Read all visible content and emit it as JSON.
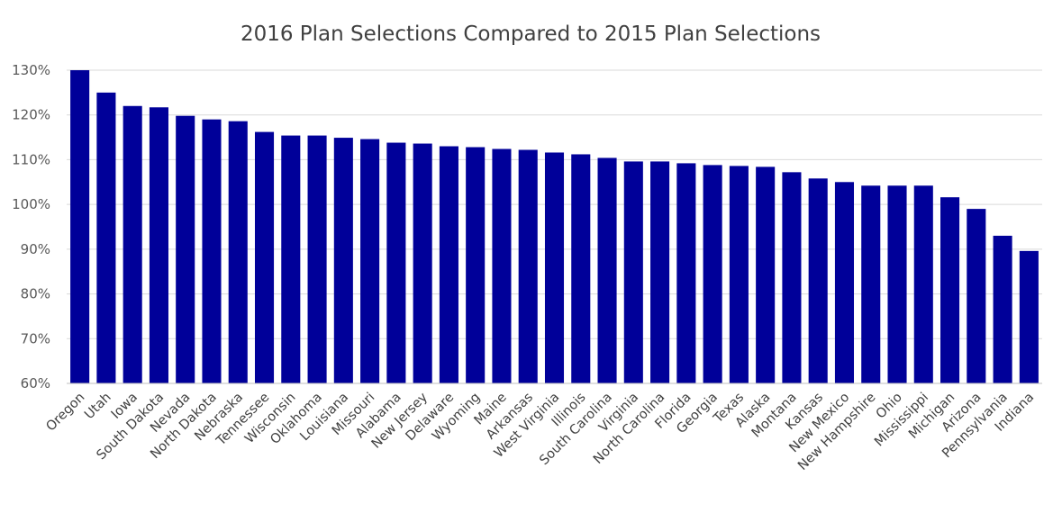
{
  "chart_data": {
    "type": "bar",
    "title": "2016 Plan Selections Compared to 2015 Plan Selections",
    "xlabel": "",
    "ylabel": "",
    "ylim": [
      0.6,
      1.3
    ],
    "yticks": [
      0.6,
      0.7,
      0.8,
      0.9,
      1.0,
      1.1,
      1.2,
      1.3
    ],
    "ytick_labels": [
      "60%",
      "70%",
      "80%",
      "90%",
      "100%",
      "110%",
      "120%",
      "130%"
    ],
    "grid": true,
    "bar_color": "#000099",
    "categories": [
      "Oregon",
      "Utah",
      "Iowa",
      "South Dakota",
      "Nevada",
      "North Dakota",
      "Nebraska",
      "Tennessee",
      "Wisconsin",
      "Oklahoma",
      "Louisiana",
      "Missouri",
      "Alabama",
      "New Jersey",
      "Delaware",
      "Wyoming",
      "Maine",
      "Arkansas",
      "West Virginia",
      "Illinois",
      "South Carolina",
      "Virginia",
      "North Carolina",
      "Florida",
      "Georgia",
      "Texas",
      "Alaska",
      "Montana",
      "Kansas",
      "New Mexico",
      "New Hampshire",
      "Ohio",
      "Mississippi",
      "Michigan",
      "Arizona",
      "Pennsylvania",
      "Indiana"
    ],
    "values": [
      1.3,
      1.25,
      1.22,
      1.217,
      1.198,
      1.19,
      1.186,
      1.162,
      1.154,
      1.154,
      1.149,
      1.146,
      1.138,
      1.136,
      1.13,
      1.128,
      1.124,
      1.122,
      1.116,
      1.112,
      1.104,
      1.096,
      1.096,
      1.092,
      1.088,
      1.086,
      1.084,
      1.072,
      1.058,
      1.05,
      1.042,
      1.042,
      1.042,
      1.016,
      0.99,
      0.93,
      0.896
    ]
  }
}
